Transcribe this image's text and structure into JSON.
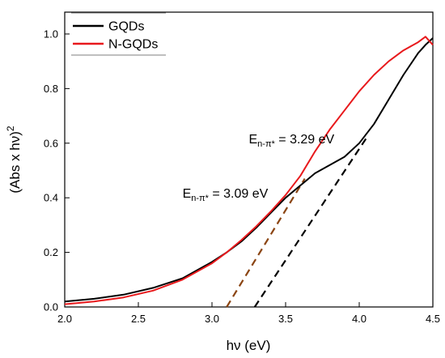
{
  "chart_data": {
    "type": "line",
    "title": "",
    "xlabel": "hν (eV)",
    "ylabel_main": "(Abs x hν)",
    "ylabel_sup": "2",
    "xlim": [
      2.0,
      4.5
    ],
    "ylim": [
      0.0,
      1.08
    ],
    "xticks": [
      "2.0",
      "2.5",
      "3.0",
      "3.5",
      "4.0",
      "4.5"
    ],
    "yticks": [
      "0.0",
      "0.2",
      "0.4",
      "0.6",
      "0.8",
      "1.0"
    ],
    "grid": false,
    "legend_position": "top-left",
    "series": [
      {
        "name": "GQDs",
        "color": "#000000",
        "x": [
          2.0,
          2.2,
          2.4,
          2.6,
          2.8,
          3.0,
          3.1,
          3.2,
          3.3,
          3.4,
          3.5,
          3.6,
          3.7,
          3.8,
          3.9,
          4.0,
          4.1,
          4.2,
          4.3,
          4.4,
          4.45,
          4.5
        ],
        "y": [
          0.02,
          0.03,
          0.045,
          0.07,
          0.105,
          0.165,
          0.2,
          0.24,
          0.29,
          0.345,
          0.4,
          0.445,
          0.49,
          0.52,
          0.55,
          0.6,
          0.67,
          0.76,
          0.85,
          0.93,
          0.96,
          0.985
        ]
      },
      {
        "name": "N-GQDs",
        "color": "#e8191c",
        "x": [
          2.0,
          2.2,
          2.4,
          2.6,
          2.8,
          3.0,
          3.1,
          3.2,
          3.3,
          3.4,
          3.5,
          3.6,
          3.7,
          3.8,
          3.9,
          4.0,
          4.1,
          4.2,
          4.3,
          4.4,
          4.45,
          4.5
        ],
        "y": [
          0.01,
          0.02,
          0.035,
          0.06,
          0.1,
          0.16,
          0.2,
          0.245,
          0.295,
          0.35,
          0.41,
          0.48,
          0.57,
          0.65,
          0.72,
          0.79,
          0.85,
          0.9,
          0.94,
          0.97,
          0.99,
          0.96
        ]
      }
    ],
    "tangents": [
      {
        "color": "#8b4513",
        "x": [
          3.1,
          3.63
        ],
        "y": [
          0.0,
          0.47
        ]
      },
      {
        "color": "#000000",
        "x": [
          3.29,
          4.05
        ],
        "y": [
          0.0,
          0.62
        ]
      }
    ],
    "annotations": [
      {
        "main": "E",
        "sub": "n-π*",
        "value": " = 3.29 eV",
        "x": 3.25,
        "y": 0.6
      },
      {
        "main": "E",
        "sub": "n-π*",
        "value": " = 3.09 eV",
        "x": 2.8,
        "y": 0.4
      }
    ]
  }
}
